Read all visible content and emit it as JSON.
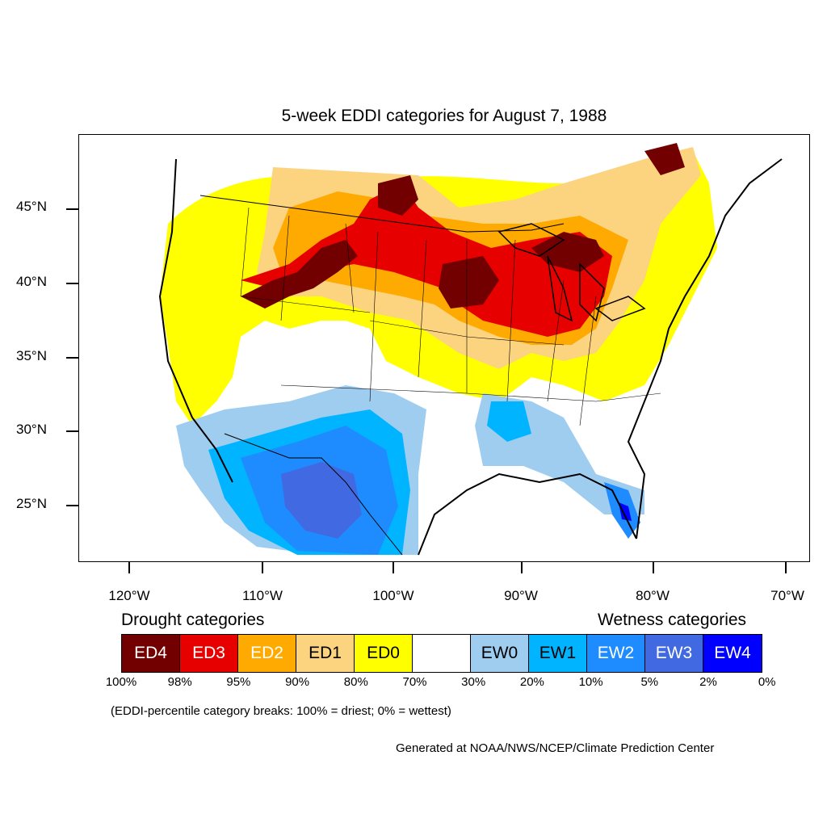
{
  "title": "5-week EDDI categories for August 7, 1988",
  "lat_labels": [
    "45°N",
    "40°N",
    "35°N",
    "30°N",
    "25°N"
  ],
  "lon_labels": [
    "120°W",
    "110°W",
    "100°W",
    "90°W",
    "80°W",
    "70°W"
  ],
  "legend": {
    "drought_heading": "Drought categories",
    "wetness_heading": "Wetness categories",
    "categories": [
      {
        "label": "ED4",
        "color": "#730000",
        "text_color": "#ffffff"
      },
      {
        "label": "ED3",
        "color": "#e60000",
        "text_color": "#ffffff"
      },
      {
        "label": "ED2",
        "color": "#ffaa00",
        "text_color": "#ffffff"
      },
      {
        "label": "ED1",
        "color": "#fcd37f",
        "text_color": "#000000"
      },
      {
        "label": "ED0",
        "color": "#ffff00",
        "text_color": "#000000"
      },
      {
        "label": "",
        "color": "#ffffff",
        "text_color": "#000000"
      },
      {
        "label": "EW0",
        "color": "#9fcdf0",
        "text_color": "#000000"
      },
      {
        "label": "EW1",
        "color": "#00b4ff",
        "text_color": "#000000"
      },
      {
        "label": "EW2",
        "color": "#1e8cff",
        "text_color": "#ffffff"
      },
      {
        "label": "EW3",
        "color": "#4169e1",
        "text_color": "#ffffff"
      },
      {
        "label": "EW4",
        "color": "#0000ff",
        "text_color": "#ffffff"
      }
    ],
    "breaks": [
      "100%",
      "98%",
      "95%",
      "90%",
      "80%",
      "70%",
      "30%",
      "20%",
      "10%",
      "5%",
      "2%",
      "0%"
    ]
  },
  "note": "(EDDI-percentile category breaks: 100% = driest; 0% = wettest)",
  "credit": "Generated at NOAA/NWS/NCEP/Climate Prediction Center"
}
